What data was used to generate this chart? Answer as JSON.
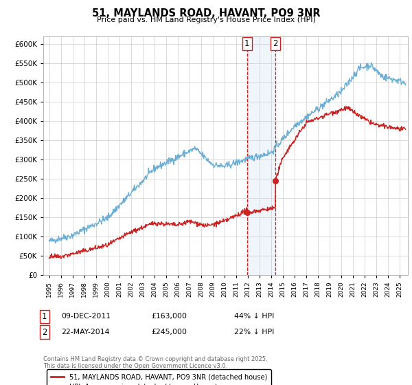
{
  "title": "51, MAYLANDS ROAD, HAVANT, PO9 3NR",
  "subtitle": "Price paid vs. HM Land Registry's House Price Index (HPI)",
  "legend_line1": "51, MAYLANDS ROAD, HAVANT, PO9 3NR (detached house)",
  "legend_line2": "HPI: Average price, detached house, Havant",
  "ann1_label": "1",
  "ann1_date": "09-DEC-2011",
  "ann1_price": "£163,000",
  "ann1_hpi": "44% ↓ HPI",
  "ann2_label": "2",
  "ann2_date": "22-MAY-2014",
  "ann2_price": "£245,000",
  "ann2_hpi": "22% ↓ HPI",
  "footnote": "Contains HM Land Registry data © Crown copyright and database right 2025.\nThis data is licensed under the Open Government Licence v3.0.",
  "ylim": [
    0,
    620000
  ],
  "yticks": [
    0,
    50000,
    100000,
    150000,
    200000,
    250000,
    300000,
    350000,
    400000,
    450000,
    500000,
    550000,
    600000
  ],
  "hpi_color": "#6baed6",
  "price_color": "#cc2222",
  "vline_color": "#cc2222",
  "span_color": "#c6d9f0",
  "background_color": "#ffffff",
  "grid_color": "#cccccc",
  "point1_x": 2011.93,
  "point1_y": 163000,
  "point2_x": 2014.38,
  "point2_y": 245000,
  "xmin": 1994.5,
  "xmax": 2025.7
}
